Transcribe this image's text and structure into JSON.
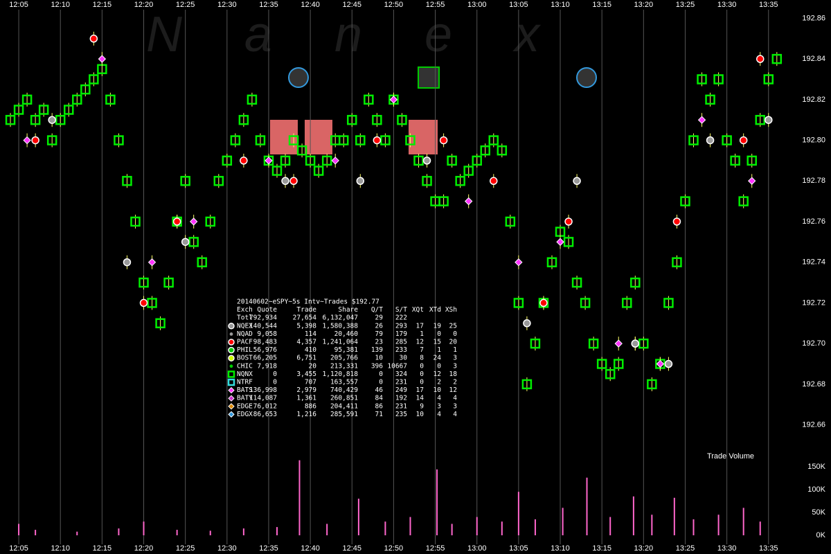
{
  "watermark": "Nanex",
  "chart_data": [
    {
      "type": "scatter",
      "xlim": [
        722.75,
        822.5
      ],
      "ylim": [
        192.651,
        192.869
      ],
      "xticks": [
        {
          "value": 725,
          "label": "12:05"
        },
        {
          "value": 730,
          "label": "12:10"
        },
        {
          "value": 735,
          "label": "12:15"
        },
        {
          "value": 740,
          "label": "12:20"
        },
        {
          "value": 745,
          "label": "12:25"
        },
        {
          "value": 750,
          "label": "12:30"
        },
        {
          "value": 755,
          "label": "12:35"
        },
        {
          "value": 760,
          "label": "12:40"
        },
        {
          "value": 765,
          "label": "12:45"
        },
        {
          "value": 770,
          "label": "12:50"
        },
        {
          "value": 775,
          "label": "12:55"
        },
        {
          "value": 780,
          "label": "13:00"
        },
        {
          "value": 785,
          "label": "13:05"
        },
        {
          "value": 790,
          "label": "13:10"
        },
        {
          "value": 795,
          "label": "13:15"
        },
        {
          "value": 800,
          "label": "13:20"
        },
        {
          "value": 805,
          "label": "13:25"
        },
        {
          "value": 810,
          "label": "13:30"
        },
        {
          "value": 815,
          "label": "13:35"
        }
      ],
      "yticks": [
        192.86,
        192.84,
        192.82,
        {
          "value": 192.8,
          "label": "192.80"
        },
        192.78,
        192.76,
        192.74,
        192.72,
        {
          "value": 192.7,
          "label": "192.70"
        },
        192.68,
        192.66
      ],
      "grid": true,
      "series": [
        {
          "name": "NQNX",
          "color": "#00ee00",
          "shape": "square",
          "x": [
            724,
            725,
            726,
            727,
            728,
            729,
            730,
            731,
            732,
            733,
            734,
            735,
            736,
            737,
            738,
            739,
            740,
            741,
            742,
            743,
            744,
            745,
            746,
            747,
            748,
            749,
            750,
            751,
            752,
            753,
            754,
            755,
            756,
            757,
            758,
            759,
            760,
            761,
            762,
            763,
            764,
            765,
            766,
            767,
            768,
            769,
            770,
            771,
            772,
            773,
            774,
            775,
            776,
            777,
            778,
            779,
            780,
            781,
            782,
            783,
            784,
            785,
            786,
            787,
            788,
            789,
            790,
            791,
            792,
            793,
            794,
            795,
            796,
            797,
            798,
            799,
            800,
            801,
            802,
            803,
            804,
            805,
            806,
            807,
            808,
            809,
            810,
            811,
            812,
            813,
            814,
            815,
            816
          ],
          "values": [
            192.81,
            192.815,
            192.82,
            192.81,
            192.815,
            192.8,
            192.81,
            192.815,
            192.82,
            192.825,
            192.83,
            192.835,
            192.82,
            192.8,
            192.78,
            192.76,
            192.73,
            192.72,
            192.71,
            192.73,
            192.76,
            192.78,
            192.75,
            192.74,
            192.76,
            192.78,
            192.79,
            192.8,
            192.81,
            192.82,
            192.8,
            192.79,
            192.785,
            192.79,
            192.8,
            192.795,
            192.79,
            192.785,
            192.79,
            192.8,
            192.8,
            192.81,
            192.8,
            192.82,
            192.81,
            192.8,
            192.82,
            192.81,
            192.8,
            192.79,
            192.78,
            192.77,
            192.77,
            192.79,
            192.78,
            192.785,
            192.79,
            192.795,
            192.8,
            192.795,
            192.76,
            192.72,
            192.68,
            192.7,
            192.72,
            192.74,
            192.755,
            192.75,
            192.73,
            192.72,
            192.7,
            192.69,
            192.685,
            192.69,
            192.72,
            192.73,
            192.7,
            192.68,
            192.69,
            192.72,
            192.74,
            192.77,
            192.8,
            192.83,
            192.82,
            192.83,
            192.8,
            192.79,
            192.77,
            192.79,
            192.81,
            192.83,
            192.84
          ]
        },
        {
          "name": "PACF",
          "color": "#ff0000",
          "shape": "circle",
          "x": [
            727,
            734,
            740,
            744,
            752,
            758,
            768,
            776,
            782,
            788,
            791,
            799,
            804,
            812,
            814
          ],
          "values": [
            192.8,
            192.85,
            192.72,
            192.76,
            192.79,
            192.78,
            192.8,
            192.8,
            192.78,
            192.72,
            192.76,
            192.7,
            192.76,
            192.8,
            192.84
          ]
        },
        {
          "name": "BATS",
          "color": "#ff33ff",
          "shape": "diamond",
          "x": [
            726,
            735,
            741,
            746,
            755,
            763,
            770,
            779,
            785,
            790,
            797,
            802,
            807,
            813
          ],
          "values": [
            192.8,
            192.84,
            192.74,
            192.76,
            192.79,
            192.79,
            192.82,
            192.77,
            192.74,
            192.75,
            192.7,
            192.69,
            192.81,
            192.78
          ]
        },
        {
          "name": "NQEX",
          "color": "#999999",
          "shape": "circle",
          "x": [
            729,
            738,
            745,
            757,
            766,
            774,
            786,
            792,
            799,
            803,
            808,
            815
          ],
          "values": [
            192.81,
            192.74,
            192.75,
            192.78,
            192.78,
            192.79,
            192.71,
            192.78,
            192.7,
            192.69,
            192.8,
            192.81
          ]
        }
      ]
    },
    {
      "type": "bar",
      "title": "Trade Volume",
      "xlim": [
        722.75,
        822.5
      ],
      "ylim": [
        0,
        174000
      ],
      "yticks": [
        {
          "value": 0,
          "label": "0K"
        },
        {
          "value": 50000,
          "label": "50K"
        },
        {
          "value": 100000,
          "label": "100K"
        },
        {
          "value": 150000,
          "label": "150K"
        }
      ],
      "color": "#ff66cc",
      "x": [
        725,
        727,
        732,
        737,
        740,
        744,
        748,
        752,
        756,
        758.7,
        762,
        765.8,
        769,
        772,
        775.2,
        777,
        780,
        783,
        785,
        787,
        790.3,
        793.2,
        796,
        798.8,
        801,
        803.7,
        806,
        809,
        812,
        814
      ],
      "values": [
        25000,
        12000,
        8000,
        15000,
        30000,
        12000,
        10000,
        15000,
        18000,
        164000,
        25000,
        80000,
        30000,
        40000,
        144000,
        25000,
        40000,
        30000,
        95000,
        35000,
        60000,
        126000,
        40000,
        85000,
        45000,
        82000,
        35000,
        45000,
        60000,
        30000
      ]
    }
  ],
  "stats": {
    "title": "20140602~eSPY~5s Intv~Trades $192.77",
    "columns": [
      "Exch",
      "Quote",
      "Trade",
      "Share",
      "Q/T",
      "S/T",
      "XQt",
      "XTd",
      "XSh"
    ],
    "rows": [
      {
        "cells": [
          "Totl",
          "792,934",
          "27,654",
          "6,132,047",
          "29",
          "222"
        ]
      },
      {
        "color": "#999999",
        "shape": "circle",
        "cells": [
          "NQEX",
          "140,544",
          "5,398",
          "1,580,388",
          "26",
          "293",
          "17",
          "19",
          "25"
        ]
      },
      {
        "color": "#999999",
        "shape": "dot",
        "cells": [
          "NQAD",
          "9,058",
          "114",
          "20,460",
          "79",
          "179",
          "1",
          "0",
          "0"
        ]
      },
      {
        "color": "#ff0000",
        "shape": "circle",
        "cells": [
          "PACF",
          "98,483",
          "4,357",
          "1,241,064",
          "23",
          "285",
          "12",
          "15",
          "20"
        ]
      },
      {
        "color": "#00cc00",
        "shape": "circle",
        "cells": [
          "PHIL",
          "56,976",
          "410",
          "95,381",
          "139",
          "233",
          "7",
          "1",
          "1"
        ]
      },
      {
        "color": "#ccff00",
        "shape": "circle",
        "cells": [
          "BOST",
          "66,205",
          "6,751",
          "205,766",
          "10",
          "30",
          "8",
          "24",
          "3"
        ]
      },
      {
        "color": "#00cc00",
        "shape": "dot",
        "cells": [
          "CHIC",
          "7,918",
          "20",
          "213,331",
          "396",
          "10667",
          "0",
          "0",
          "3"
        ]
      },
      {
        "color": "#00ee00",
        "shape": "square",
        "cells": [
          "NQNX",
          "0",
          "3,455",
          "1,120,818",
          "0",
          "324",
          "0",
          "12",
          "18"
        ]
      },
      {
        "color": "#33dddd",
        "shape": "square",
        "cells": [
          "NTRF",
          "0",
          "707",
          "163,557",
          "0",
          "231",
          "0",
          "2",
          "2"
        ]
      },
      {
        "color": "#ff33ff",
        "shape": "diamond",
        "cells": [
          "BATS",
          "136,998",
          "2,979",
          "740,429",
          "46",
          "249",
          "17",
          "10",
          "12"
        ]
      },
      {
        "color": "#cc33cc",
        "shape": "diamond",
        "cells": [
          "BATY",
          "114,087",
          "1,361",
          "260,851",
          "84",
          "192",
          "14",
          "4",
          "4"
        ]
      },
      {
        "color": "#dd8800",
        "shape": "diamond",
        "cells": [
          "EDGE",
          "76,012",
          "886",
          "204,411",
          "86",
          "231",
          "9",
          "3",
          "3"
        ]
      },
      {
        "color": "#3399dd",
        "shape": "diamond",
        "cells": [
          "EDGX",
          "86,653",
          "1,216",
          "285,591",
          "71",
          "235",
          "10",
          "4",
          "4"
        ]
      }
    ]
  }
}
